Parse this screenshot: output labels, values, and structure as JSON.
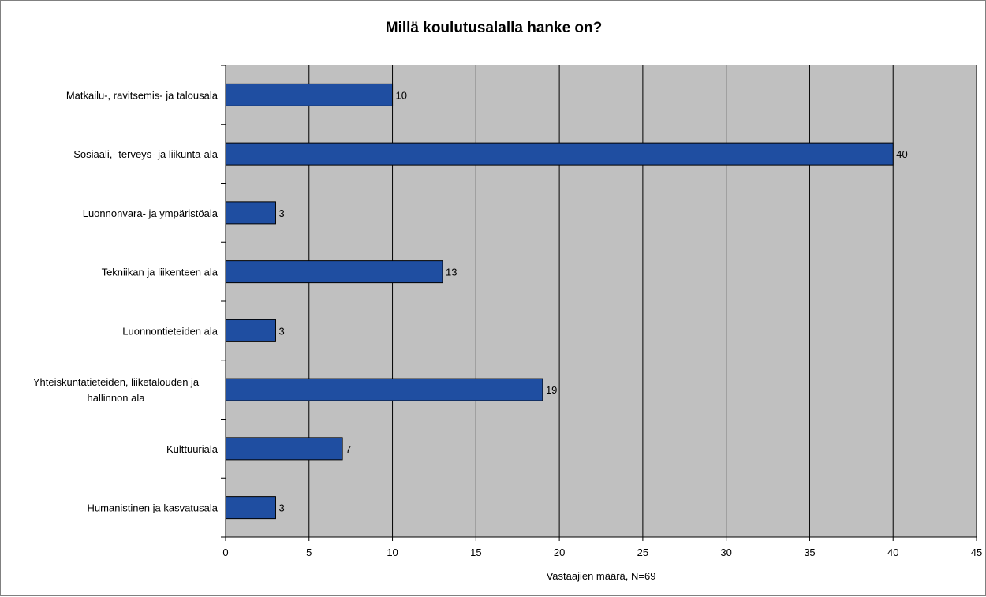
{
  "chart_data": {
    "type": "bar",
    "orientation": "horizontal",
    "title": "Millä koulutusalalla hanke on?",
    "xlabel": "Vastaajien määrä, N=69",
    "ylabel": "",
    "categories": [
      "Matkailu-, ravitsemis- ja talousala",
      "Sosiaali,- terveys- ja liikunta-ala",
      "Luonnonvara- ja ympäristöala",
      "Tekniikan ja liikenteen ala",
      "Luonnontieteiden ala",
      [
        "Yhteiskuntatieteiden, liiketalouden ja",
        "hallinnon ala"
      ],
      "Kulttuuriala",
      "Humanistinen ja kasvatusala"
    ],
    "values": [
      10,
      40,
      3,
      13,
      3,
      19,
      7,
      3
    ],
    "value_labels": [
      "10",
      "40",
      "3",
      "13",
      "3",
      "19",
      "7",
      "3"
    ],
    "xlim": [
      0,
      45
    ],
    "xticks": [
      "0",
      "5",
      "10",
      "15",
      "20",
      "25",
      "30",
      "35",
      "40",
      "45"
    ],
    "grid": true,
    "legend": "none",
    "colors": {
      "bar_fill": "#1f4ea1",
      "bar_stroke": "#000000",
      "plot_background": "#c0c0c0",
      "gridline": "#000000"
    }
  }
}
